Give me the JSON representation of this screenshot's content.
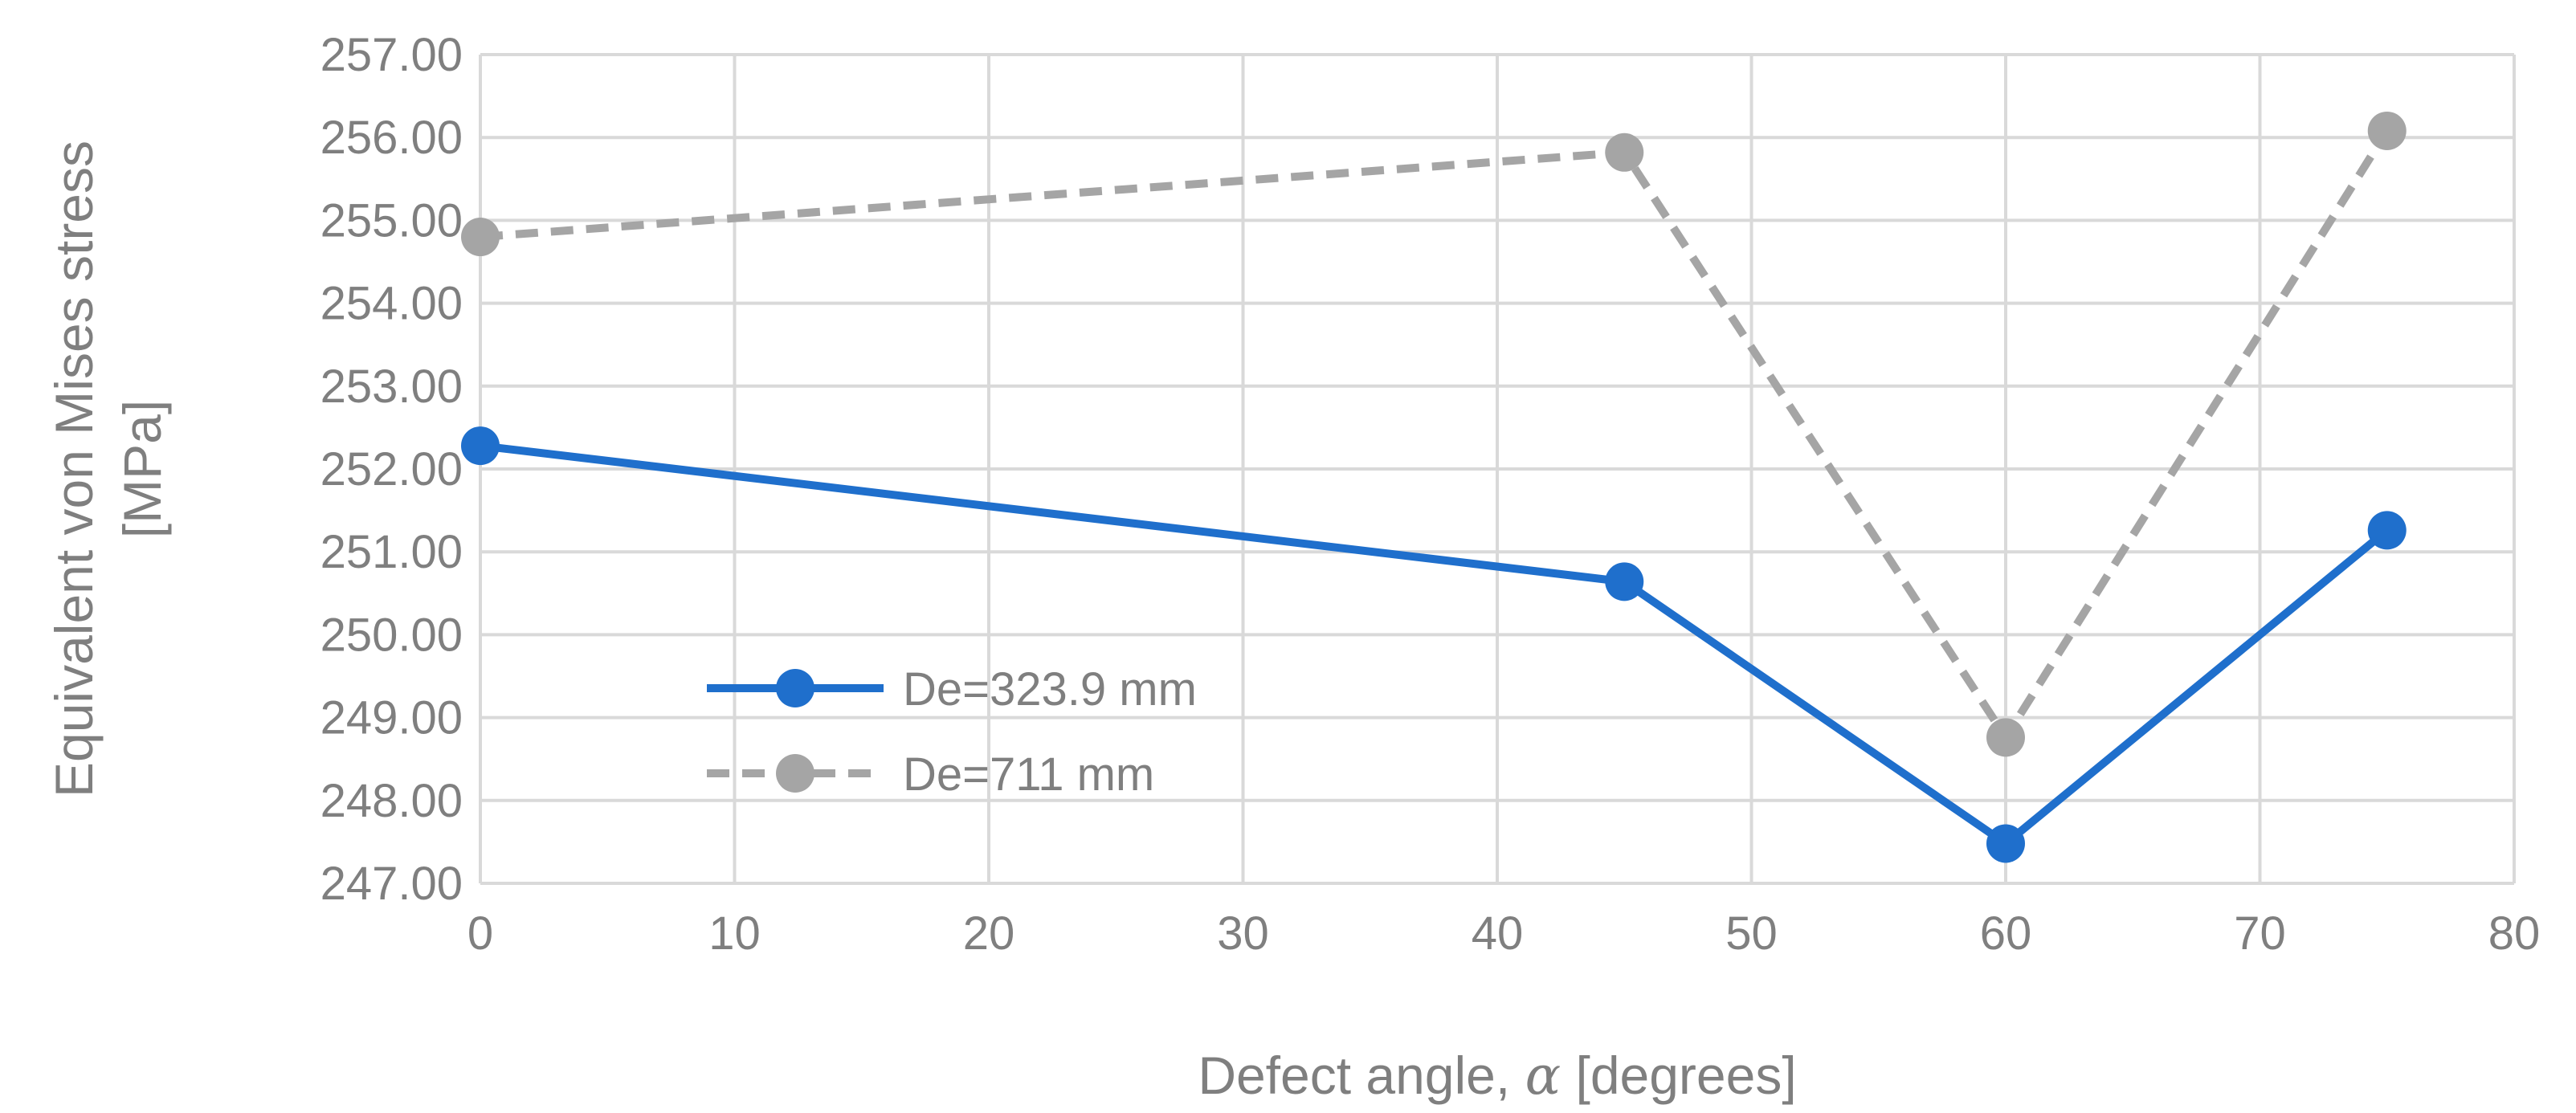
{
  "chart_data": {
    "type": "line",
    "title": "",
    "xlabel": "Defect angle, α [degrees]",
    "xlabel_parts": {
      "prefix": "Defect angle, ",
      "symbol": "α",
      "suffix": " [degrees]"
    },
    "ylabel_lines": [
      "Equivalent von Mises stress",
      "[MPa]"
    ],
    "xlim": [
      0,
      80
    ],
    "ylim": [
      247.0,
      257.0
    ],
    "x_ticks": [
      0,
      10,
      20,
      30,
      40,
      50,
      60,
      70,
      80
    ],
    "x_tick_labels": [
      "0",
      "10",
      "20",
      "30",
      "40",
      "50",
      "60",
      "70",
      "80"
    ],
    "y_ticks": [
      247,
      248,
      249,
      250,
      251,
      252,
      253,
      254,
      255,
      256,
      257
    ],
    "y_tick_labels": [
      "247.00",
      "248.00",
      "249.00",
      "250.00",
      "251.00",
      "252.00",
      "253.00",
      "254.00",
      "255.00",
      "256.00",
      "257.00"
    ],
    "grid": true,
    "legend_position": "center-left",
    "series": [
      {
        "name": "De=323.9 mm",
        "x": [
          0,
          45,
          60,
          75
        ],
        "values": [
          252.28,
          250.64,
          247.48,
          251.26
        ],
        "color": "#1f6fcc",
        "line_style": "solid"
      },
      {
        "name": "De=711 mm",
        "x": [
          0,
          45,
          60,
          75
        ],
        "values": [
          254.8,
          255.82,
          248.76,
          256.08
        ],
        "color": "#a5a5a5",
        "line_style": "dashed"
      }
    ]
  },
  "colors": {
    "grid": "#d9d9d9",
    "text": "#7f7f7f",
    "background": "#ffffff"
  }
}
